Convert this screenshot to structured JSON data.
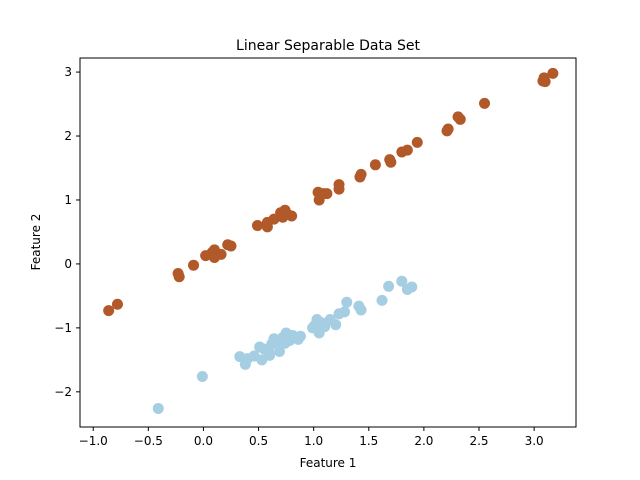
{
  "chart_data": {
    "type": "scatter",
    "title": "Linear Separable Data Set",
    "xlabel": "Feature 1",
    "ylabel": "Feature 2",
    "xlim": [
      -1.12,
      3.38
    ],
    "ylim": [
      -2.55,
      3.22
    ],
    "xticks": [
      -1.0,
      -0.5,
      0.0,
      0.5,
      1.0,
      1.5,
      2.0,
      2.5,
      3.0
    ],
    "xtick_labels": [
      "−1.0",
      "−0.5",
      "0.0",
      "0.5",
      "1.0",
      "1.5",
      "2.0",
      "2.5",
      "3.0"
    ],
    "yticks": [
      -2,
      -1,
      0,
      1,
      2,
      3
    ],
    "ytick_labels": [
      "−2",
      "−1",
      "0",
      "1",
      "2",
      "3"
    ],
    "grid": false,
    "legend": false,
    "series": [
      {
        "color": "#b15928",
        "points": [
          [
            -0.86,
            -0.73
          ],
          [
            -0.78,
            -0.63
          ],
          [
            -0.23,
            -0.15
          ],
          [
            -0.22,
            -0.2
          ],
          [
            -0.09,
            -0.02
          ],
          [
            0.02,
            0.13
          ],
          [
            0.08,
            0.18
          ],
          [
            0.1,
            0.22
          ],
          [
            0.1,
            0.1
          ],
          [
            0.16,
            0.15
          ],
          [
            0.22,
            0.3
          ],
          [
            0.25,
            0.28
          ],
          [
            0.49,
            0.6
          ],
          [
            0.58,
            0.58
          ],
          [
            0.58,
            0.65
          ],
          [
            0.64,
            0.7
          ],
          [
            0.7,
            0.8
          ],
          [
            0.72,
            0.73
          ],
          [
            0.74,
            0.84
          ],
          [
            0.76,
            0.78
          ],
          [
            0.8,
            0.75
          ],
          [
            1.04,
            1.12
          ],
          [
            1.05,
            1.0
          ],
          [
            1.09,
            1.1
          ],
          [
            1.12,
            1.1
          ],
          [
            1.23,
            1.17
          ],
          [
            1.23,
            1.24
          ],
          [
            1.42,
            1.36
          ],
          [
            1.43,
            1.4
          ],
          [
            1.56,
            1.55
          ],
          [
            1.69,
            1.63
          ],
          [
            1.7,
            1.59
          ],
          [
            1.8,
            1.75
          ],
          [
            1.85,
            1.78
          ],
          [
            1.94,
            1.9
          ],
          [
            2.21,
            2.08
          ],
          [
            2.22,
            2.11
          ],
          [
            2.31,
            2.3
          ],
          [
            2.33,
            2.26
          ],
          [
            2.55,
            2.51
          ],
          [
            3.08,
            2.86
          ],
          [
            3.09,
            2.91
          ],
          [
            3.1,
            2.85
          ],
          [
            3.17,
            2.98
          ]
        ]
      },
      {
        "color": "#a6cee3",
        "points": [
          [
            -0.41,
            -2.26
          ],
          [
            -0.01,
            -1.76
          ],
          [
            0.33,
            -1.45
          ],
          [
            0.38,
            -1.57
          ],
          [
            0.4,
            -1.48
          ],
          [
            0.46,
            -1.44
          ],
          [
            0.51,
            -1.3
          ],
          [
            0.53,
            -1.5
          ],
          [
            0.55,
            -1.33
          ],
          [
            0.59,
            -1.36
          ],
          [
            0.6,
            -1.43
          ],
          [
            0.62,
            -1.25
          ],
          [
            0.64,
            -1.17
          ],
          [
            0.68,
            -1.22
          ],
          [
            0.69,
            -1.37
          ],
          [
            0.72,
            -1.15
          ],
          [
            0.74,
            -1.24
          ],
          [
            0.75,
            -1.08
          ],
          [
            0.78,
            -1.2
          ],
          [
            0.81,
            -1.12
          ],
          [
            0.86,
            -1.18
          ],
          [
            0.88,
            -1.13
          ],
          [
            0.99,
            -1.0
          ],
          [
            1.01,
            -0.96
          ],
          [
            1.03,
            -0.87
          ],
          [
            1.04,
            -1.03
          ],
          [
            1.05,
            -1.08
          ],
          [
            1.07,
            -0.92
          ],
          [
            1.1,
            -0.98
          ],
          [
            1.15,
            -0.87
          ],
          [
            1.2,
            -0.95
          ],
          [
            1.23,
            -0.78
          ],
          [
            1.28,
            -0.75
          ],
          [
            1.3,
            -0.6
          ],
          [
            1.41,
            -0.66
          ],
          [
            1.43,
            -0.72
          ],
          [
            1.62,
            -0.57
          ],
          [
            1.68,
            -0.35
          ],
          [
            1.8,
            -0.27
          ],
          [
            1.85,
            -0.4
          ],
          [
            1.89,
            -0.36
          ]
        ]
      }
    ]
  }
}
